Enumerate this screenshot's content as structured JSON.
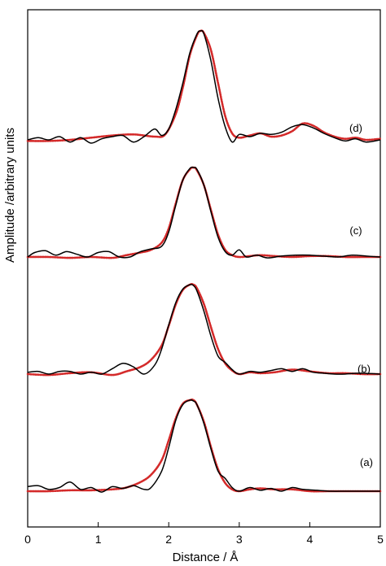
{
  "chart_data": {
    "type": "line",
    "title": "",
    "xlabel": "Distance / Å",
    "ylabel": "Amplitude /arbitrary units",
    "xlim": [
      0,
      5
    ],
    "xticks": [
      "0",
      "1",
      "2",
      "3",
      "4",
      "5"
    ],
    "y_axis_ticks": false,
    "grid": false,
    "legend": "none",
    "colors": {
      "experimental": "#000000",
      "fit": "#d42a2a"
    },
    "panels": [
      {
        "label": "(d)",
        "experimental": {
          "x": [
            0.0,
            0.15,
            0.3,
            0.45,
            0.6,
            0.75,
            0.9,
            1.05,
            1.2,
            1.35,
            1.5,
            1.65,
            1.8,
            1.9,
            2.0,
            2.1,
            2.2,
            2.3,
            2.4,
            2.45,
            2.5,
            2.6,
            2.7,
            2.8,
            2.9,
            3.0,
            3.15,
            3.3,
            3.45,
            3.6,
            3.75,
            3.9,
            4.05,
            4.2,
            4.35,
            4.5,
            4.65,
            4.8,
            5.0
          ],
          "y": [
            0.0,
            0.02,
            0.0,
            0.03,
            -0.02,
            0.02,
            -0.03,
            0.01,
            0.03,
            0.04,
            -0.02,
            0.03,
            0.1,
            0.04,
            0.1,
            0.28,
            0.52,
            0.8,
            0.97,
            1.0,
            0.97,
            0.72,
            0.38,
            0.12,
            -0.02,
            0.05,
            0.03,
            0.06,
            0.05,
            0.07,
            0.12,
            0.14,
            0.11,
            0.06,
            0.02,
            -0.01,
            0.01,
            -0.02,
            0.0
          ]
        },
        "fit": {
          "x": [
            0.0,
            0.3,
            0.6,
            0.9,
            1.2,
            1.5,
            1.8,
            1.95,
            2.1,
            2.2,
            2.3,
            2.4,
            2.45,
            2.5,
            2.6,
            2.7,
            2.8,
            2.9,
            3.0,
            3.15,
            3.3,
            3.45,
            3.6,
            3.75,
            3.9,
            4.05,
            4.2,
            4.35,
            4.5,
            4.65,
            4.8,
            5.0
          ],
          "y": [
            -0.01,
            -0.01,
            0.0,
            0.02,
            0.04,
            0.05,
            0.03,
            0.05,
            0.24,
            0.48,
            0.78,
            0.96,
            1.0,
            0.98,
            0.82,
            0.52,
            0.22,
            0.06,
            0.02,
            0.04,
            0.06,
            0.03,
            0.04,
            0.08,
            0.15,
            0.13,
            0.07,
            0.03,
            0.01,
            0.02,
            0.0,
            0.01
          ]
        }
      },
      {
        "label": "(c)",
        "experimental": {
          "x": [
            0.0,
            0.1,
            0.25,
            0.4,
            0.55,
            0.7,
            0.85,
            1.0,
            1.15,
            1.3,
            1.45,
            1.6,
            1.75,
            1.9,
            2.0,
            2.1,
            2.2,
            2.3,
            2.35,
            2.4,
            2.5,
            2.6,
            2.7,
            2.8,
            2.9,
            3.0,
            3.1,
            3.25,
            3.4,
            3.6,
            3.8,
            4.0,
            4.2,
            4.4,
            4.6,
            4.8,
            5.0
          ],
          "y": [
            0.0,
            0.05,
            0.07,
            0.02,
            0.06,
            0.03,
            0.0,
            0.05,
            0.06,
            0.0,
            0.0,
            0.06,
            0.09,
            0.12,
            0.28,
            0.58,
            0.86,
            0.99,
            1.0,
            0.98,
            0.8,
            0.5,
            0.22,
            0.06,
            0.02,
            0.08,
            0.0,
            0.02,
            -0.01,
            0.01,
            0.02,
            0.02,
            0.01,
            0.0,
            0.02,
            0.01,
            0.0
          ]
        },
        "fit": {
          "x": [
            0.0,
            0.3,
            0.6,
            0.9,
            1.2,
            1.4,
            1.6,
            1.75,
            1.9,
            2.0,
            2.1,
            2.2,
            2.3,
            2.35,
            2.4,
            2.5,
            2.6,
            2.7,
            2.8,
            2.9,
            3.0,
            3.15,
            3.3,
            3.5,
            3.75,
            4.0,
            4.25,
            4.5,
            4.75,
            5.0
          ],
          "y": [
            0.0,
            0.0,
            -0.01,
            0.0,
            -0.01,
            0.02,
            0.05,
            0.08,
            0.16,
            0.32,
            0.6,
            0.86,
            0.98,
            1.0,
            0.97,
            0.8,
            0.52,
            0.25,
            0.08,
            0.02,
            0.0,
            0.01,
            0.02,
            0.01,
            0.0,
            0.01,
            0.01,
            0.0,
            0.0,
            0.0
          ]
        }
      },
      {
        "label": "(b)",
        "experimental": {
          "x": [
            0.0,
            0.15,
            0.3,
            0.45,
            0.6,
            0.75,
            0.9,
            1.05,
            1.2,
            1.35,
            1.5,
            1.65,
            1.8,
            1.9,
            2.0,
            2.1,
            2.2,
            2.3,
            2.35,
            2.4,
            2.5,
            2.6,
            2.7,
            2.8,
            2.9,
            3.0,
            3.15,
            3.3,
            3.45,
            3.6,
            3.75,
            3.9,
            4.05,
            4.2,
            4.35,
            4.5,
            4.7,
            5.0
          ],
          "y": [
            0.02,
            0.03,
            0.0,
            0.03,
            0.03,
            0.0,
            0.02,
            0.0,
            0.06,
            0.12,
            0.08,
            0.0,
            0.1,
            0.28,
            0.55,
            0.8,
            0.95,
            1.0,
            0.99,
            0.93,
            0.7,
            0.42,
            0.2,
            0.13,
            0.05,
            0.0,
            0.03,
            0.02,
            0.04,
            0.06,
            0.03,
            0.06,
            0.02,
            0.01,
            0.0,
            0.0,
            0.01,
            0.0
          ]
        },
        "fit": {
          "x": [
            0.0,
            0.3,
            0.6,
            0.9,
            1.2,
            1.4,
            1.6,
            1.75,
            1.9,
            2.0,
            2.1,
            2.2,
            2.3,
            2.35,
            2.4,
            2.5,
            2.6,
            2.7,
            2.8,
            2.9,
            3.0,
            3.15,
            3.3,
            3.5,
            3.75,
            4.0,
            4.25,
            4.5,
            4.75,
            5.0
          ],
          "y": [
            0.0,
            -0.01,
            0.01,
            0.02,
            -0.01,
            0.03,
            0.08,
            0.16,
            0.32,
            0.54,
            0.78,
            0.94,
            1.0,
            1.0,
            0.96,
            0.78,
            0.52,
            0.28,
            0.12,
            0.04,
            0.0,
            0.02,
            0.01,
            0.02,
            0.05,
            0.03,
            0.01,
            0.01,
            0.0,
            0.0
          ]
        }
      },
      {
        "label": "(a)",
        "experimental": {
          "x": [
            0.0,
            0.15,
            0.3,
            0.45,
            0.6,
            0.75,
            0.9,
            1.05,
            1.2,
            1.35,
            1.5,
            1.65,
            1.75,
            1.9,
            2.0,
            2.1,
            2.2,
            2.3,
            2.35,
            2.4,
            2.5,
            2.6,
            2.7,
            2.8,
            2.9,
            3.0,
            3.15,
            3.3,
            3.45,
            3.6,
            3.75,
            3.9,
            4.1,
            4.3,
            4.5,
            4.7,
            5.0
          ],
          "y": [
            0.05,
            0.06,
            0.02,
            0.04,
            0.1,
            0.02,
            0.04,
            -0.01,
            0.05,
            0.03,
            0.06,
            0.02,
            0.04,
            0.22,
            0.48,
            0.78,
            0.95,
            1.0,
            0.99,
            0.95,
            0.74,
            0.46,
            0.22,
            0.14,
            0.04,
            0.0,
            0.04,
            0.01,
            0.03,
            0.0,
            0.04,
            0.02,
            0.01,
            0.0,
            0.0,
            0.0,
            0.0
          ]
        },
        "fit": {
          "x": [
            0.0,
            0.3,
            0.6,
            0.9,
            1.2,
            1.4,
            1.6,
            1.75,
            1.9,
            2.0,
            2.1,
            2.2,
            2.3,
            2.35,
            2.4,
            2.5,
            2.6,
            2.7,
            2.8,
            2.9,
            3.0,
            3.15,
            3.3,
            3.5,
            3.75,
            4.0,
            4.25,
            4.5,
            4.75,
            5.0
          ],
          "y": [
            0.0,
            0.0,
            0.01,
            0.01,
            0.02,
            0.04,
            0.1,
            0.18,
            0.34,
            0.56,
            0.8,
            0.96,
            1.0,
            1.0,
            0.95,
            0.76,
            0.48,
            0.24,
            0.09,
            0.02,
            0.0,
            0.02,
            0.03,
            0.02,
            0.02,
            0.0,
            0.0,
            0.0,
            0.0,
            0.0
          ]
        }
      }
    ]
  }
}
